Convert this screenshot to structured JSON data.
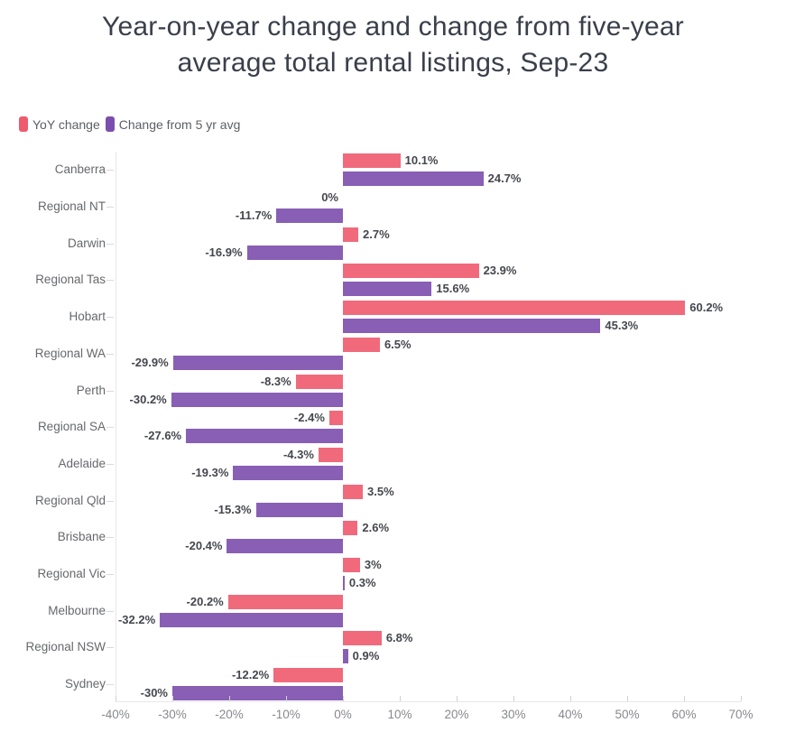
{
  "title": "Year-on-year change and change from five-year average total rental listings, Sep-23",
  "legend": {
    "items": [
      {
        "label": "YoY change",
        "color": "#ee5a6e"
      },
      {
        "label": "Change from 5 yr avg",
        "color": "#7b4ead"
      }
    ]
  },
  "chart_data": {
    "type": "bar",
    "orientation": "horizontal",
    "title": "Year-on-year change and change from five-year average total rental listings, Sep-23",
    "categories": [
      "Canberra",
      "Regional NT",
      "Darwin",
      "Regional Tas",
      "Hobart",
      "Regional WA",
      "Perth",
      "Regional SA",
      "Adelaide",
      "Regional Qld",
      "Brisbane",
      "Regional Vic",
      "Melbourne",
      "Regional NSW",
      "Sydney"
    ],
    "series": [
      {
        "name": "YoY change",
        "color": "#ee5a6e",
        "values": [
          10.1,
          0,
          2.7,
          23.9,
          60.2,
          6.5,
          -8.3,
          -2.4,
          -4.3,
          3.5,
          2.6,
          3,
          -20.2,
          6.8,
          -12.2
        ],
        "labels": [
          "10.1%",
          "0%",
          "2.7%",
          "23.9%",
          "60.2%",
          "6.5%",
          "-8.3%",
          "-2.4%",
          "-4.3%",
          "3.5%",
          "2.6%",
          "3%",
          "-20.2%",
          "6.8%",
          "-12.2%"
        ]
      },
      {
        "name": "Change from 5 yr avg",
        "color": "#7b4ead",
        "values": [
          24.7,
          -11.7,
          -16.9,
          15.6,
          45.3,
          -29.9,
          -30.2,
          -27.6,
          -19.3,
          -15.3,
          -20.4,
          0.3,
          -32.2,
          0.9,
          -30
        ],
        "labels": [
          "24.7%",
          "-11.7%",
          "-16.9%",
          "15.6%",
          "45.3%",
          "-29.9%",
          "-30.2%",
          "-27.6%",
          "-19.3%",
          "-15.3%",
          "-20.4%",
          "0.3%",
          "-32.2%",
          "0.9%",
          "-30%"
        ]
      }
    ],
    "xlim": [
      -40,
      70
    ],
    "x_tick_values": [
      -40,
      -30,
      -20,
      -10,
      0,
      10,
      20,
      30,
      40,
      50,
      60,
      70
    ],
    "x_tick_labels": [
      "-40%",
      "-30%",
      "-20%",
      "-10%",
      "0%",
      "10%",
      "20%",
      "30%",
      "40%",
      "50%",
      "60%",
      "70%"
    ],
    "grid": false,
    "value_labels": true,
    "legend_position": "top-left"
  }
}
